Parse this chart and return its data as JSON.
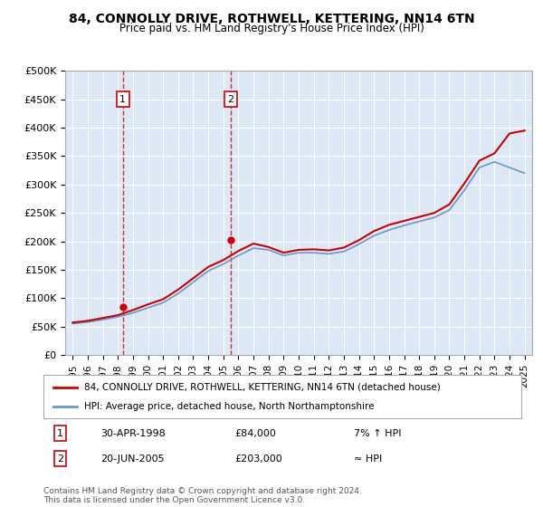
{
  "title": "84, CONNOLLY DRIVE, ROTHWELL, KETTERING, NN14 6TN",
  "subtitle": "Price paid vs. HM Land Registry's House Price Index (HPI)",
  "background_color": "#f0f4ff",
  "plot_bg_color": "#dce8f5",
  "ylabel": "",
  "ylim": [
    0,
    500000
  ],
  "yticks": [
    0,
    50000,
    100000,
    150000,
    200000,
    250000,
    300000,
    350000,
    400000,
    450000,
    500000
  ],
  "ytick_labels": [
    "£0",
    "£50K",
    "£100K",
    "£150K",
    "£200K",
    "£250K",
    "£300K",
    "£350K",
    "£400K",
    "£450K",
    "£500K"
  ],
  "xlim": [
    1994.5,
    2025.5
  ],
  "years": [
    1995,
    1996,
    1997,
    1998,
    1999,
    2000,
    2001,
    2002,
    2003,
    2004,
    2005,
    2006,
    2007,
    2008,
    2009,
    2010,
    2011,
    2012,
    2013,
    2014,
    2015,
    2016,
    2017,
    2018,
    2019,
    2020,
    2021,
    2022,
    2023,
    2024,
    2025
  ],
  "hpi_values": [
    55000,
    58000,
    62000,
    67000,
    74000,
    83000,
    92000,
    108000,
    128000,
    148000,
    160000,
    175000,
    188000,
    185000,
    175000,
    180000,
    180000,
    178000,
    182000,
    195000,
    210000,
    220000,
    228000,
    235000,
    242000,
    255000,
    290000,
    330000,
    340000,
    330000,
    320000
  ],
  "house_values": [
    57000,
    60000,
    65000,
    70000,
    79000,
    89000,
    98000,
    115000,
    135000,
    155000,
    167000,
    183000,
    196000,
    190000,
    180000,
    185000,
    186000,
    184000,
    189000,
    202000,
    218000,
    229000,
    236000,
    243000,
    250000,
    265000,
    302000,
    342000,
    355000,
    390000,
    395000
  ],
  "transactions": [
    {
      "year": 1998.33,
      "price": 84000,
      "label": "1",
      "date": "30-APR-1998",
      "hpi_rel": "7% ↑ HPI"
    },
    {
      "year": 2005.5,
      "price": 203000,
      "label": "2",
      "date": "20-JUN-2005",
      "hpi_rel": "≈ HPI"
    }
  ],
  "legend_house": "84, CONNOLLY DRIVE, ROTHWELL, KETTERING, NN14 6TN (detached house)",
  "legend_hpi": "HPI: Average price, detached house, North Northamptonshire",
  "house_color": "#cc0000",
  "hpi_color": "#6699cc",
  "footer": "Contains HM Land Registry data © Crown copyright and database right 2024.\nThis data is licensed under the Open Government Licence v3.0.",
  "table_rows": [
    [
      "1",
      "30-APR-1998",
      "£84,000",
      "7% ↑ HPI"
    ],
    [
      "2",
      "20-JUN-2005",
      "£203,000",
      "≈ HPI"
    ]
  ]
}
